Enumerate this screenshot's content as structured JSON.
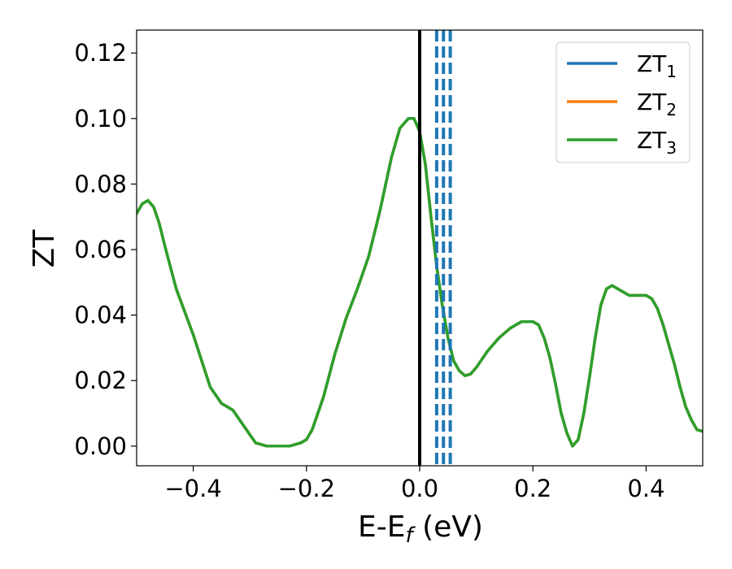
{
  "chart_data": {
    "type": "line",
    "title": "",
    "xlabel": "E-E",
    "xlabel_sub": "f",
    "xlabel_unit": " (eV)",
    "ylabel": "ZT",
    "xlim": [
      -0.5,
      0.5
    ],
    "ylim": [
      -0.006,
      0.127
    ],
    "x_ticks": [
      -0.4,
      -0.2,
      0.0,
      0.2,
      0.4
    ],
    "x_tick_labels": [
      "−0.4",
      "−0.2",
      "0.0",
      "0.2",
      "0.4"
    ],
    "y_ticks": [
      0.0,
      0.02,
      0.04,
      0.06,
      0.08,
      0.1,
      0.12
    ],
    "y_tick_labels": [
      "0.00",
      "0.02",
      "0.04",
      "0.06",
      "0.08",
      "0.10",
      "0.12"
    ],
    "grid": false,
    "legend_position": "top-right",
    "series": [
      {
        "name": "ZT",
        "sub": "1",
        "color": "#1f77b4",
        "x": [
          -0.5,
          -0.49,
          -0.48,
          -0.47,
          -0.46,
          -0.45,
          -0.43,
          -0.4,
          -0.37,
          -0.35,
          -0.33,
          -0.31,
          -0.29,
          -0.27,
          -0.25,
          -0.23,
          -0.21,
          -0.2,
          -0.19,
          -0.17,
          -0.15,
          -0.13,
          -0.11,
          -0.09,
          -0.07,
          -0.05,
          -0.035,
          -0.02,
          -0.01,
          0.0,
          0.01,
          0.02,
          0.03,
          0.04,
          0.05,
          0.06,
          0.07,
          0.08,
          0.09,
          0.1,
          0.12,
          0.14,
          0.16,
          0.18,
          0.2,
          0.21,
          0.22,
          0.23,
          0.24,
          0.25,
          0.26,
          0.27,
          0.28,
          0.29,
          0.3,
          0.31,
          0.32,
          0.33,
          0.34,
          0.35,
          0.36,
          0.37,
          0.38,
          0.39,
          0.4,
          0.41,
          0.42,
          0.43,
          0.44,
          0.45,
          0.46,
          0.47,
          0.48,
          0.49,
          0.5
        ],
        "y": [
          0.071,
          0.074,
          0.075,
          0.073,
          0.068,
          0.061,
          0.048,
          0.034,
          0.018,
          0.013,
          0.011,
          0.006,
          0.001,
          0.0,
          0.0,
          0.0,
          0.001,
          0.002,
          0.005,
          0.015,
          0.028,
          0.039,
          0.048,
          0.058,
          0.072,
          0.088,
          0.097,
          0.1,
          0.1,
          0.096,
          0.086,
          0.07,
          0.055,
          0.043,
          0.033,
          0.026,
          0.023,
          0.0215,
          0.022,
          0.024,
          0.029,
          0.033,
          0.036,
          0.038,
          0.038,
          0.037,
          0.033,
          0.027,
          0.019,
          0.01,
          0.004,
          0.0,
          0.002,
          0.01,
          0.021,
          0.033,
          0.043,
          0.048,
          0.049,
          0.048,
          0.047,
          0.046,
          0.046,
          0.046,
          0.046,
          0.045,
          0.042,
          0.037,
          0.031,
          0.025,
          0.018,
          0.012,
          0.008,
          0.005,
          0.0045
        ]
      },
      {
        "name": "ZT",
        "sub": "2",
        "color": "#ff7f0e",
        "x": [
          -0.5,
          -0.49,
          -0.48,
          -0.47,
          -0.46,
          -0.45,
          -0.43,
          -0.4,
          -0.37,
          -0.35,
          -0.33,
          -0.31,
          -0.29,
          -0.27,
          -0.25,
          -0.23,
          -0.21,
          -0.2,
          -0.19,
          -0.17,
          -0.15,
          -0.13,
          -0.11,
          -0.09,
          -0.07,
          -0.05,
          -0.035,
          -0.02,
          -0.01,
          0.0,
          0.01,
          0.02,
          0.03,
          0.04,
          0.05,
          0.06,
          0.07,
          0.08,
          0.09,
          0.1,
          0.12,
          0.14,
          0.16,
          0.18,
          0.2,
          0.21,
          0.22,
          0.23,
          0.24,
          0.25,
          0.26,
          0.27,
          0.28,
          0.29,
          0.3,
          0.31,
          0.32,
          0.33,
          0.34,
          0.35,
          0.36,
          0.37,
          0.38,
          0.39,
          0.4,
          0.41,
          0.42,
          0.43,
          0.44,
          0.45,
          0.46,
          0.47,
          0.48,
          0.49,
          0.5
        ],
        "y": [
          0.071,
          0.074,
          0.075,
          0.073,
          0.068,
          0.061,
          0.048,
          0.034,
          0.018,
          0.013,
          0.011,
          0.006,
          0.001,
          0.0,
          0.0,
          0.0,
          0.001,
          0.002,
          0.005,
          0.015,
          0.028,
          0.039,
          0.048,
          0.058,
          0.072,
          0.088,
          0.097,
          0.1,
          0.1,
          0.096,
          0.086,
          0.07,
          0.055,
          0.043,
          0.033,
          0.026,
          0.023,
          0.0215,
          0.022,
          0.024,
          0.029,
          0.033,
          0.036,
          0.038,
          0.038,
          0.037,
          0.033,
          0.027,
          0.019,
          0.01,
          0.004,
          0.0,
          0.002,
          0.01,
          0.021,
          0.033,
          0.043,
          0.048,
          0.049,
          0.048,
          0.047,
          0.046,
          0.046,
          0.046,
          0.046,
          0.045,
          0.042,
          0.037,
          0.031,
          0.025,
          0.018,
          0.012,
          0.008,
          0.005,
          0.0045
        ]
      },
      {
        "name": "ZT",
        "sub": "3",
        "color": "#2ca02c",
        "x": [
          -0.5,
          -0.49,
          -0.48,
          -0.47,
          -0.46,
          -0.45,
          -0.43,
          -0.4,
          -0.37,
          -0.35,
          -0.33,
          -0.31,
          -0.29,
          -0.27,
          -0.25,
          -0.23,
          -0.21,
          -0.2,
          -0.19,
          -0.17,
          -0.15,
          -0.13,
          -0.11,
          -0.09,
          -0.07,
          -0.05,
          -0.035,
          -0.02,
          -0.01,
          0.0,
          0.01,
          0.02,
          0.03,
          0.04,
          0.05,
          0.06,
          0.07,
          0.08,
          0.09,
          0.1,
          0.12,
          0.14,
          0.16,
          0.18,
          0.2,
          0.21,
          0.22,
          0.23,
          0.24,
          0.25,
          0.26,
          0.27,
          0.28,
          0.29,
          0.3,
          0.31,
          0.32,
          0.33,
          0.34,
          0.35,
          0.36,
          0.37,
          0.38,
          0.39,
          0.4,
          0.41,
          0.42,
          0.43,
          0.44,
          0.45,
          0.46,
          0.47,
          0.48,
          0.49,
          0.5
        ],
        "y": [
          0.071,
          0.074,
          0.075,
          0.073,
          0.068,
          0.061,
          0.048,
          0.034,
          0.018,
          0.013,
          0.011,
          0.006,
          0.001,
          0.0,
          0.0,
          0.0,
          0.001,
          0.002,
          0.005,
          0.015,
          0.028,
          0.039,
          0.048,
          0.058,
          0.072,
          0.088,
          0.097,
          0.1,
          0.1,
          0.096,
          0.086,
          0.07,
          0.055,
          0.043,
          0.033,
          0.026,
          0.023,
          0.0215,
          0.022,
          0.024,
          0.029,
          0.033,
          0.036,
          0.038,
          0.038,
          0.037,
          0.033,
          0.027,
          0.019,
          0.01,
          0.004,
          0.0,
          0.002,
          0.01,
          0.021,
          0.033,
          0.043,
          0.048,
          0.049,
          0.048,
          0.047,
          0.046,
          0.046,
          0.046,
          0.046,
          0.045,
          0.042,
          0.037,
          0.031,
          0.025,
          0.018,
          0.012,
          0.008,
          0.005,
          0.0045
        ]
      }
    ],
    "vertical_lines": [
      {
        "x": 0.0,
        "color": "#000000",
        "style": "solid"
      },
      {
        "x": 0.03,
        "color": "#1f77b4",
        "style": "dashed"
      },
      {
        "x": 0.042,
        "color": "#1f77b4",
        "style": "dashed"
      },
      {
        "x": 0.054,
        "color": "#1f77b4",
        "style": "dashed"
      }
    ]
  }
}
